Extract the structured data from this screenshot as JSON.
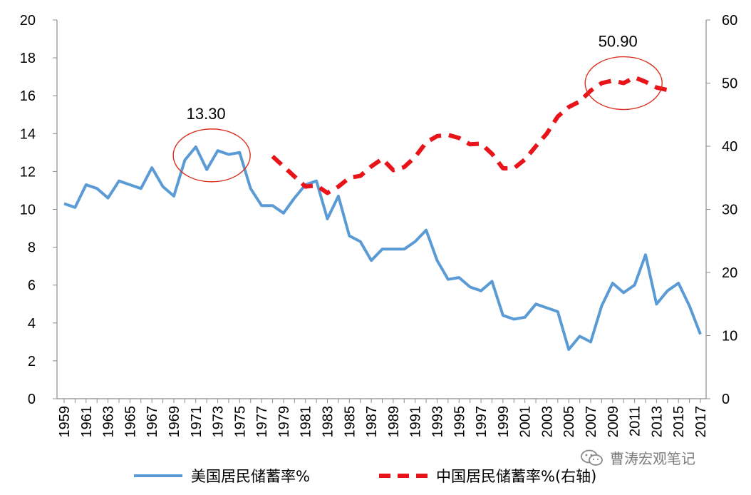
{
  "chart_data": {
    "type": "line",
    "x_ticks": [
      "1959",
      "1961",
      "1963",
      "1965",
      "1967",
      "1969",
      "1971",
      "1973",
      "1975",
      "1977",
      "1979",
      "1981",
      "1983",
      "1985",
      "1987",
      "1989",
      "1991",
      "1993",
      "1995",
      "1997",
      "1999",
      "2001",
      "2003",
      "2005",
      "2007",
      "2009",
      "2011",
      "2013",
      "2015",
      "2017"
    ],
    "y_left": {
      "min": 0,
      "max": 20,
      "step": 2,
      "ticks": [
        "0",
        "2",
        "4",
        "6",
        "8",
        "10",
        "12",
        "14",
        "16",
        "18",
        "20"
      ]
    },
    "y_right": {
      "min": 0,
      "max": 60,
      "step": 10,
      "ticks": [
        "0",
        "10",
        "20",
        "30",
        "40",
        "50",
        "60"
      ]
    },
    "series": [
      {
        "name": "美国居民储蓄率%",
        "axis": "left",
        "color": "#5B9BD5",
        "style": "solid",
        "x": [
          1959,
          1960,
          1961,
          1962,
          1963,
          1964,
          1965,
          1966,
          1967,
          1968,
          1969,
          1970,
          1971,
          1972,
          1973,
          1974,
          1975,
          1976,
          1977,
          1978,
          1979,
          1980,
          1981,
          1982,
          1983,
          1984,
          1985,
          1986,
          1987,
          1988,
          1989,
          1990,
          1991,
          1992,
          1993,
          1994,
          1995,
          1996,
          1997,
          1998,
          1999,
          2000,
          2001,
          2002,
          2003,
          2004,
          2005,
          2006,
          2007,
          2008,
          2009,
          2010,
          2011,
          2012,
          2013,
          2014,
          2015,
          2016,
          2017
        ],
        "values": [
          10.3,
          10.1,
          11.3,
          11.1,
          10.6,
          11.5,
          11.3,
          11.1,
          12.2,
          11.2,
          10.7,
          12.6,
          13.3,
          12.1,
          13.1,
          12.9,
          13.0,
          11.1,
          10.2,
          10.2,
          9.8,
          10.6,
          11.3,
          11.5,
          9.5,
          10.7,
          8.6,
          8.3,
          7.3,
          7.9,
          7.9,
          7.9,
          8.3,
          8.9,
          7.3,
          6.3,
          6.4,
          5.9,
          5.7,
          6.2,
          4.4,
          4.2,
          4.3,
          5.0,
          4.8,
          4.6,
          2.6,
          3.3,
          3.0,
          4.9,
          6.1,
          5.6,
          6.0,
          7.6,
          5.0,
          5.7,
          6.1,
          4.9,
          3.4
        ]
      },
      {
        "name": "中国居民储蓄率%(右轴)",
        "axis": "right",
        "color": "#E8141A",
        "style": "dashed",
        "x": [
          1978,
          1979,
          1980,
          1981,
          1982,
          1983,
          1984,
          1985,
          1986,
          1987,
          1988,
          1989,
          1990,
          1991,
          1992,
          1993,
          1994,
          1995,
          1996,
          1997,
          1998,
          1999,
          2000,
          2001,
          2002,
          2003,
          2004,
          2005,
          2006,
          2007,
          2008,
          2009,
          2010,
          2011,
          2012,
          2013,
          2014
        ],
        "values": [
          38.4,
          36.8,
          35.2,
          33.6,
          33.8,
          32.6,
          33.6,
          35.0,
          35.3,
          36.8,
          38.0,
          36.2,
          36.7,
          38.3,
          40.6,
          41.6,
          41.8,
          41.3,
          40.3,
          40.4,
          38.8,
          36.5,
          36.5,
          37.9,
          40.0,
          42.0,
          44.7,
          46.2,
          47.1,
          48.8,
          50.0,
          50.4,
          50.0,
          50.9,
          50.2,
          49.3,
          48.9
        ]
      }
    ],
    "annotations": [
      {
        "text": "13.30",
        "x": 1972,
        "y": 13.3,
        "axis": "left"
      },
      {
        "text": "50.90",
        "x": 2010,
        "y": 50.9,
        "axis": "right"
      }
    ],
    "legend_position": "bottom",
    "grid": false
  },
  "watermark": {
    "text": "曹涛宏观笔记",
    "icon": "wechat-icon"
  }
}
